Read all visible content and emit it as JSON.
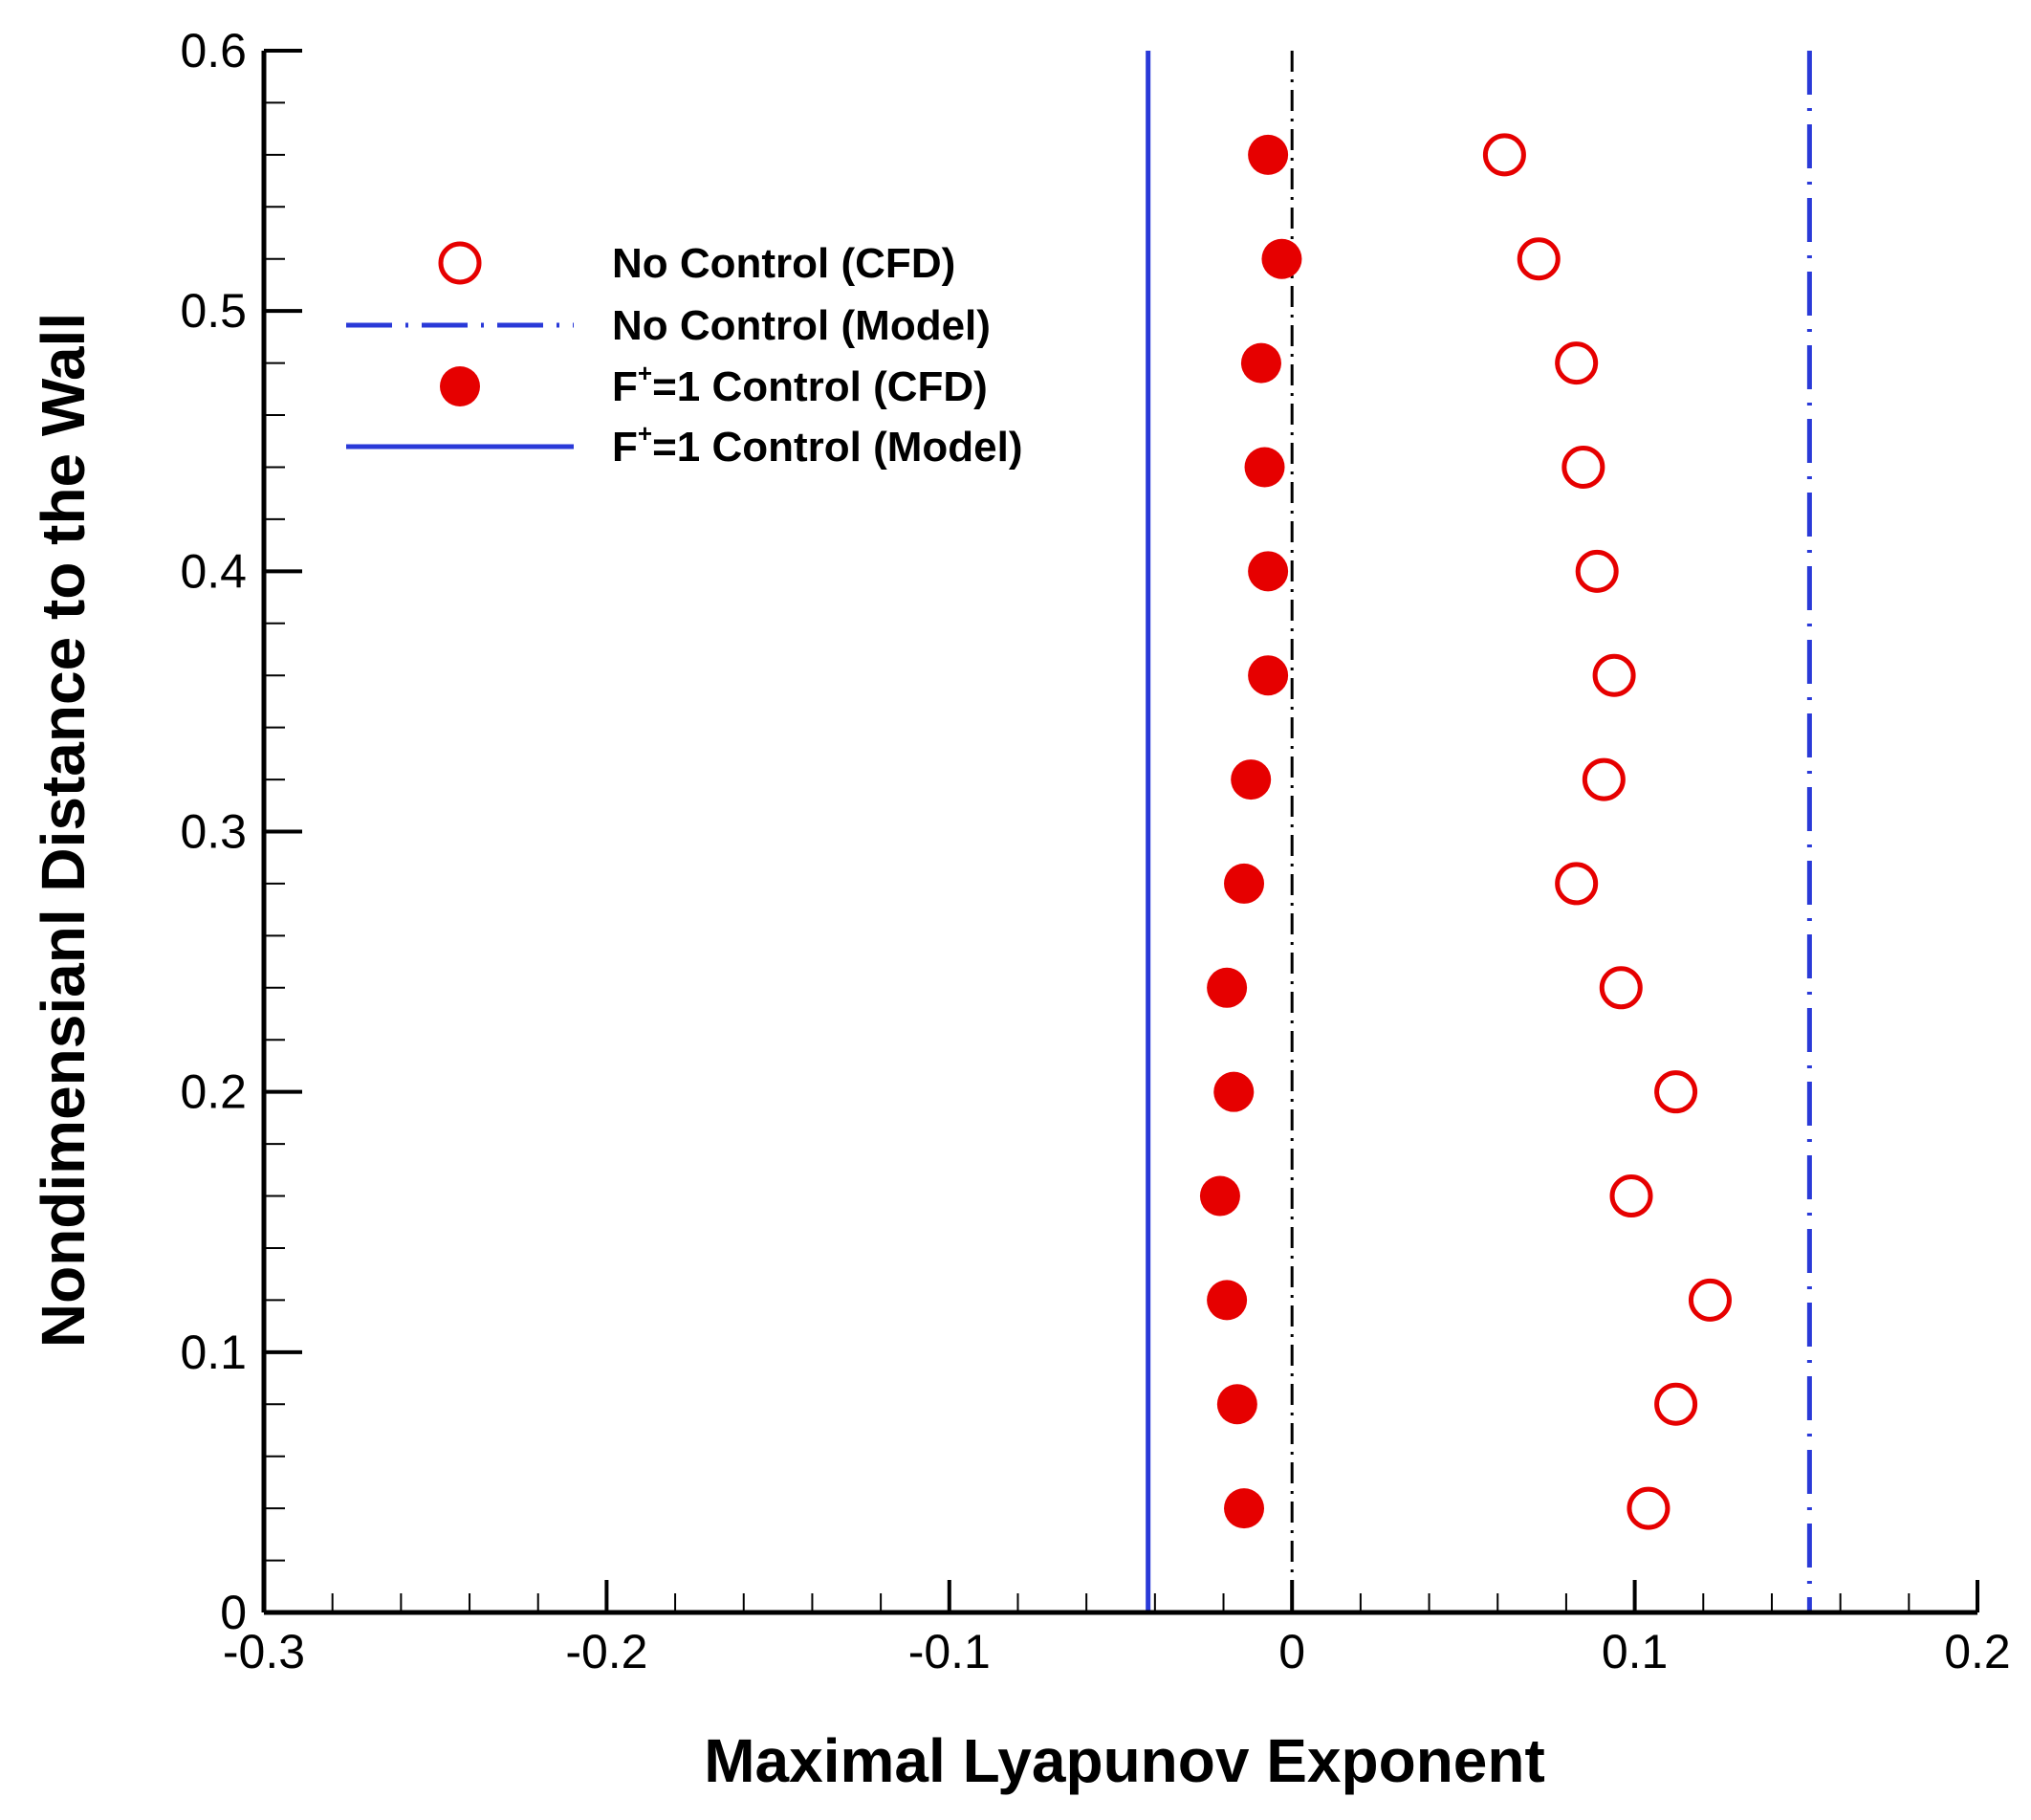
{
  "chart_data": {
    "type": "scatter",
    "title": "",
    "xlabel": "Maximal Lyapunov Exponent",
    "ylabel": "Nondimensianl Distance to the Wall",
    "xlim": [
      -0.3,
      0.2
    ],
    "ylim": [
      0,
      0.6
    ],
    "x_ticks": [
      "-0.3",
      "-0.2",
      "-0.1",
      "0",
      "0.1",
      "0.2"
    ],
    "y_ticks": [
      "0",
      "0.1",
      "0.2",
      "0.3",
      "0.4",
      "0.5",
      "0.6"
    ],
    "grid": false,
    "legend_position": "top-left",
    "colors": {
      "cfd": "#e60000",
      "model": "#2a3ad8",
      "zero_line": "#000000"
    },
    "series": [
      {
        "name": "No Control (CFD)",
        "legend_label": "No Control (CFD)",
        "marker": "open-circle",
        "points": [
          {
            "x": 0.062,
            "y": 0.56
          },
          {
            "x": 0.072,
            "y": 0.52
          },
          {
            "x": 0.083,
            "y": 0.48
          },
          {
            "x": 0.085,
            "y": 0.44
          },
          {
            "x": 0.089,
            "y": 0.4
          },
          {
            "x": 0.094,
            "y": 0.36
          },
          {
            "x": 0.091,
            "y": 0.32
          },
          {
            "x": 0.083,
            "y": 0.28
          },
          {
            "x": 0.096,
            "y": 0.24
          },
          {
            "x": 0.112,
            "y": 0.2
          },
          {
            "x": 0.099,
            "y": 0.16
          },
          {
            "x": 0.122,
            "y": 0.12
          },
          {
            "x": 0.112,
            "y": 0.08
          },
          {
            "x": 0.104,
            "y": 0.04
          }
        ]
      },
      {
        "name": "No Control (Model)",
        "legend_label": "No Control (Model)",
        "line": "dashed-vertical",
        "x": 0.151
      },
      {
        "name": "F+=1 Control (CFD)",
        "legend_prefix": "F",
        "legend_sup": "+",
        "legend_suffix": "=1 Control (CFD)",
        "marker": "filled-circle",
        "points": [
          {
            "x": -0.007,
            "y": 0.56
          },
          {
            "x": -0.003,
            "y": 0.52
          },
          {
            "x": -0.009,
            "y": 0.48
          },
          {
            "x": -0.008,
            "y": 0.44
          },
          {
            "x": -0.007,
            "y": 0.4
          },
          {
            "x": -0.007,
            "y": 0.36
          },
          {
            "x": -0.012,
            "y": 0.32
          },
          {
            "x": -0.014,
            "y": 0.28
          },
          {
            "x": -0.019,
            "y": 0.24
          },
          {
            "x": -0.017,
            "y": 0.2
          },
          {
            "x": -0.021,
            "y": 0.16
          },
          {
            "x": -0.019,
            "y": 0.12
          },
          {
            "x": -0.016,
            "y": 0.08
          },
          {
            "x": -0.014,
            "y": 0.04
          }
        ]
      },
      {
        "name": "F+=1 Control (Model)",
        "legend_prefix": "F",
        "legend_sup": "+",
        "legend_suffix": "=1 Control (Model)",
        "line": "solid-vertical",
        "x": -0.042
      }
    ],
    "reference_line": {
      "type": "dash-dot-vertical",
      "x": 0
    }
  }
}
